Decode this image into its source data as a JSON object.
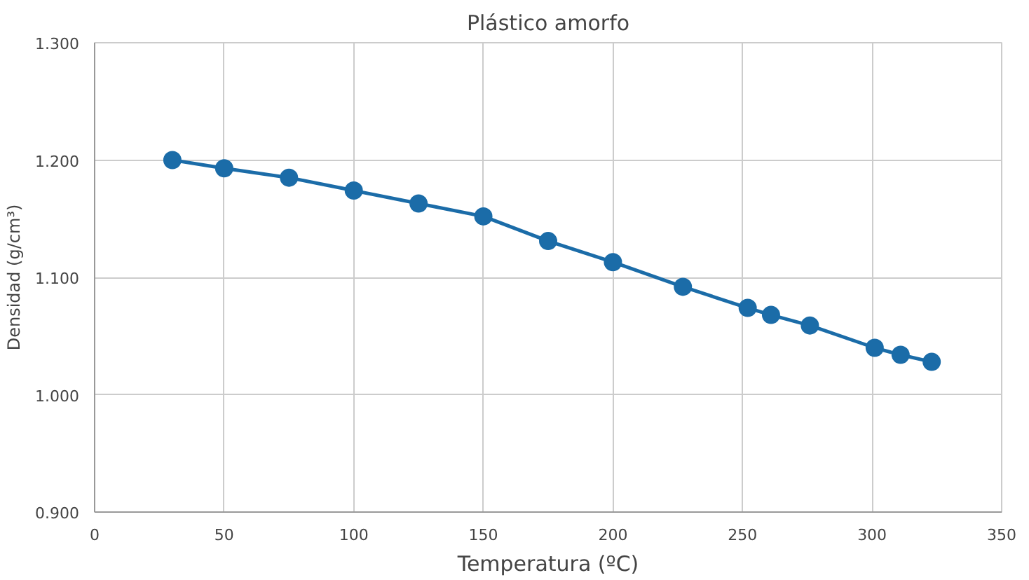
{
  "chart_data": {
    "type": "line",
    "title": "Plástico amorfo",
    "xlabel": "Temperatura (ºC)",
    "ylabel": "Densidad (g/cm³)",
    "x": [
      30,
      50,
      75,
      100,
      125,
      150,
      175,
      200,
      227,
      252,
      261,
      276,
      301,
      311,
      323
    ],
    "series": [
      {
        "color": "#1b6ca8",
        "values": [
          1.2,
          1.193,
          1.185,
          1.174,
          1.163,
          1.152,
          1.131,
          1.113,
          1.092,
          1.074,
          1.068,
          1.059,
          1.04,
          1.034,
          1.028
        ]
      }
    ],
    "xlim": [
      0,
      350
    ],
    "xticks": [
      0,
      50,
      100,
      150,
      200,
      250,
      300,
      350
    ],
    "ylim": [
      0.9,
      1.3
    ],
    "yticks": [
      {
        "value": 0.9,
        "label": "0.900"
      },
      {
        "value": 1.0,
        "label": "1.000"
      },
      {
        "value": 1.1,
        "label": "1.100"
      },
      {
        "value": 1.2,
        "label": "1.200"
      },
      {
        "value": 1.3,
        "label": "1.300"
      }
    ],
    "grid": true,
    "marker": "circle",
    "line_style": "solid"
  }
}
